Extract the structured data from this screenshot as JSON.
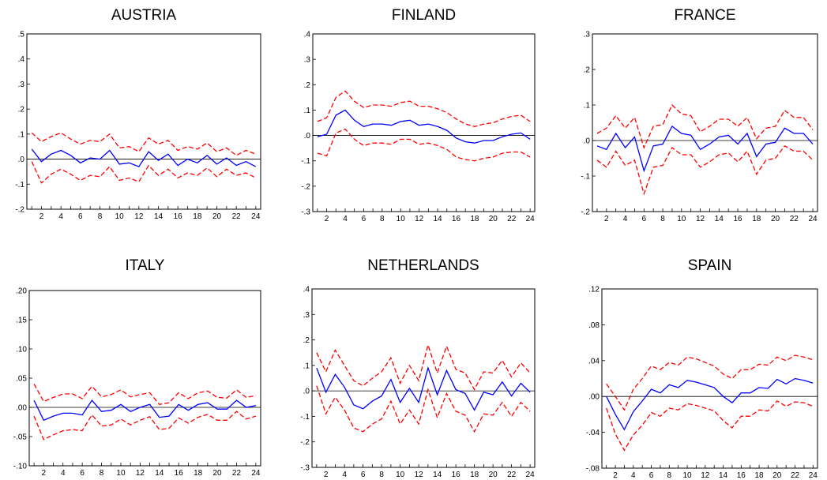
{
  "colors": {
    "response": "#0000ff",
    "band": "#ff0000",
    "zero_line": "#000000",
    "frame": "#000000"
  },
  "chart_data": [
    {
      "type": "line",
      "title": "AUSTRIA",
      "x": [
        1,
        2,
        3,
        4,
        5,
        6,
        7,
        8,
        9,
        10,
        11,
        12,
        13,
        14,
        15,
        16,
        17,
        18,
        19,
        20,
        21,
        22,
        23,
        24
      ],
      "xticks": [
        2,
        4,
        6,
        8,
        10,
        12,
        14,
        16,
        18,
        20,
        22,
        24
      ],
      "ylim": [
        -0.2,
        0.5
      ],
      "yticks": [
        -0.2,
        -0.1,
        0.0,
        0.1,
        0.2,
        0.3,
        0.4,
        0.5
      ],
      "ytick_labels": [
        "-.2",
        "-.1",
        ".0",
        ".1",
        ".2",
        ".3",
        ".4",
        ".5"
      ],
      "series": [
        {
          "role": "response",
          "values": [
            0.04,
            -0.01,
            0.02,
            0.035,
            0.015,
            -0.015,
            0.005,
            0.0,
            0.035,
            -0.02,
            -0.015,
            -0.03,
            0.03,
            -0.005,
            0.02,
            -0.025,
            0.0,
            -0.015,
            0.015,
            -0.02,
            0.005,
            -0.025,
            -0.01,
            -0.03
          ]
        },
        {
          "role": "upper",
          "values": [
            0.105,
            0.07,
            0.09,
            0.105,
            0.08,
            0.06,
            0.075,
            0.07,
            0.1,
            0.045,
            0.05,
            0.03,
            0.085,
            0.06,
            0.075,
            0.035,
            0.05,
            0.04,
            0.065,
            0.03,
            0.045,
            0.015,
            0.035,
            0.02
          ]
        },
        {
          "role": "lower",
          "values": [
            -0.01,
            -0.095,
            -0.06,
            -0.04,
            -0.06,
            -0.085,
            -0.065,
            -0.07,
            -0.03,
            -0.085,
            -0.075,
            -0.09,
            -0.025,
            -0.065,
            -0.04,
            -0.075,
            -0.055,
            -0.065,
            -0.035,
            -0.07,
            -0.04,
            -0.065,
            -0.055,
            -0.075
          ]
        }
      ]
    },
    {
      "type": "line",
      "title": "FINLAND",
      "x": [
        1,
        2,
        3,
        4,
        5,
        6,
        7,
        8,
        9,
        10,
        11,
        12,
        13,
        14,
        15,
        16,
        17,
        18,
        19,
        20,
        21,
        22,
        23,
        24
      ],
      "xticks": [
        2,
        4,
        6,
        8,
        10,
        12,
        14,
        16,
        18,
        20,
        22,
        24
      ],
      "ylim": [
        -0.3,
        0.4
      ],
      "yticks": [
        -0.3,
        -0.2,
        -0.1,
        0.0,
        0.1,
        0.2,
        0.3,
        0.4
      ],
      "ytick_labels": [
        "-.3",
        "-.2",
        "-.1",
        ".0",
        ".1",
        ".2",
        ".3",
        ".4"
      ],
      "series": [
        {
          "role": "response",
          "values": [
            -0.005,
            0.005,
            0.08,
            0.1,
            0.06,
            0.035,
            0.045,
            0.045,
            0.04,
            0.055,
            0.06,
            0.04,
            0.045,
            0.035,
            0.02,
            -0.01,
            -0.025,
            -0.03,
            -0.02,
            -0.02,
            -0.005,
            0.005,
            0.01,
            -0.015
          ]
        },
        {
          "role": "upper",
          "values": [
            0.055,
            0.07,
            0.15,
            0.175,
            0.135,
            0.11,
            0.12,
            0.12,
            0.115,
            0.13,
            0.135,
            0.115,
            0.115,
            0.105,
            0.09,
            0.065,
            0.045,
            0.035,
            0.045,
            0.05,
            0.065,
            0.075,
            0.08,
            0.055
          ]
        },
        {
          "role": "lower",
          "values": [
            -0.07,
            -0.08,
            0.01,
            0.025,
            -0.015,
            -0.04,
            -0.03,
            -0.03,
            -0.035,
            -0.015,
            -0.015,
            -0.035,
            -0.03,
            -0.04,
            -0.055,
            -0.085,
            -0.095,
            -0.1,
            -0.09,
            -0.085,
            -0.07,
            -0.065,
            -0.065,
            -0.085
          ]
        }
      ]
    },
    {
      "type": "line",
      "title": "FRANCE",
      "x": [
        1,
        2,
        3,
        4,
        5,
        6,
        7,
        8,
        9,
        10,
        11,
        12,
        13,
        14,
        15,
        16,
        17,
        18,
        19,
        20,
        21,
        22,
        23,
        24
      ],
      "xticks": [
        2,
        4,
        6,
        8,
        10,
        12,
        14,
        16,
        18,
        20,
        22,
        24
      ],
      "ylim": [
        -0.2,
        0.3
      ],
      "yticks": [
        -0.2,
        -0.1,
        0.0,
        0.1,
        0.2,
        0.3
      ],
      "ytick_labels": [
        "-.2",
        "-.1",
        ".0",
        ".1",
        ".2",
        ".3"
      ],
      "series": [
        {
          "role": "response",
          "values": [
            -0.015,
            -0.025,
            0.02,
            -0.02,
            0.01,
            -0.085,
            -0.015,
            -0.01,
            0.04,
            0.02,
            0.015,
            -0.025,
            -0.01,
            0.01,
            0.015,
            -0.01,
            0.02,
            -0.045,
            -0.01,
            -0.005,
            0.035,
            0.02,
            0.02,
            -0.01
          ]
        },
        {
          "role": "upper",
          "values": [
            0.02,
            0.035,
            0.07,
            0.035,
            0.065,
            -0.02,
            0.04,
            0.045,
            0.1,
            0.075,
            0.07,
            0.025,
            0.04,
            0.06,
            0.06,
            0.04,
            0.065,
            0.005,
            0.035,
            0.04,
            0.085,
            0.065,
            0.065,
            0.03
          ]
        },
        {
          "role": "lower",
          "values": [
            -0.055,
            -0.075,
            -0.03,
            -0.07,
            -0.055,
            -0.15,
            -0.075,
            -0.07,
            -0.02,
            -0.04,
            -0.04,
            -0.075,
            -0.06,
            -0.04,
            -0.035,
            -0.06,
            -0.03,
            -0.095,
            -0.055,
            -0.05,
            -0.015,
            -0.03,
            -0.03,
            -0.055
          ]
        }
      ]
    },
    {
      "type": "line",
      "title": "ITALY",
      "x": [
        1,
        2,
        3,
        4,
        5,
        6,
        7,
        8,
        9,
        10,
        11,
        12,
        13,
        14,
        15,
        16,
        17,
        18,
        19,
        20,
        21,
        22,
        23,
        24
      ],
      "xticks": [
        2,
        4,
        6,
        8,
        10,
        12,
        14,
        16,
        18,
        20,
        22,
        24
      ],
      "ylim": [
        -0.1,
        0.2
      ],
      "yticks": [
        -0.1,
        -0.05,
        0.0,
        0.05,
        0.1,
        0.15,
        0.2
      ],
      "ytick_labels": [
        "-.10",
        "-.05",
        ".00",
        ".05",
        ".10",
        ".15",
        ".20"
      ],
      "series": [
        {
          "role": "response",
          "values": [
            0.012,
            -0.022,
            -0.015,
            -0.01,
            -0.01,
            -0.013,
            0.012,
            -0.007,
            -0.005,
            0.005,
            -0.007,
            0.0,
            0.005,
            -0.017,
            -0.015,
            0.005,
            -0.005,
            0.005,
            0.008,
            -0.003,
            -0.003,
            0.012,
            0.0,
            0.003
          ]
        },
        {
          "role": "upper",
          "values": [
            0.04,
            0.01,
            0.017,
            0.023,
            0.023,
            0.015,
            0.036,
            0.018,
            0.022,
            0.03,
            0.018,
            0.022,
            0.025,
            0.005,
            0.008,
            0.025,
            0.015,
            0.025,
            0.028,
            0.017,
            0.016,
            0.03,
            0.017,
            0.02
          ]
        },
        {
          "role": "lower",
          "values": [
            -0.015,
            -0.055,
            -0.047,
            -0.04,
            -0.038,
            -0.04,
            -0.013,
            -0.032,
            -0.03,
            -0.02,
            -0.03,
            -0.022,
            -0.016,
            -0.038,
            -0.036,
            -0.018,
            -0.027,
            -0.017,
            -0.012,
            -0.022,
            -0.022,
            -0.007,
            -0.02,
            -0.015
          ]
        }
      ]
    },
    {
      "type": "line",
      "title": "NETHERLANDS",
      "x": [
        1,
        2,
        3,
        4,
        5,
        6,
        7,
        8,
        9,
        10,
        11,
        12,
        13,
        14,
        15,
        16,
        17,
        18,
        19,
        20,
        21,
        22,
        23,
        24
      ],
      "xticks": [
        2,
        4,
        6,
        8,
        10,
        12,
        14,
        16,
        18,
        20,
        22,
        24
      ],
      "ylim": [
        -0.3,
        0.4
      ],
      "yticks": [
        -0.3,
        -0.2,
        -0.1,
        0.0,
        0.1,
        0.2,
        0.3,
        0.4
      ],
      "ytick_labels": [
        "-.3",
        "-.2",
        "-.1",
        ".0",
        ".1",
        ".2",
        ".3",
        ".4"
      ],
      "series": [
        {
          "role": "response",
          "values": [
            0.09,
            -0.005,
            0.065,
            0.015,
            -0.055,
            -0.07,
            -0.04,
            -0.02,
            0.045,
            -0.045,
            0.01,
            -0.045,
            0.09,
            -0.015,
            0.08,
            0.005,
            -0.01,
            -0.075,
            -0.005,
            -0.015,
            0.035,
            -0.02,
            0.03,
            -0.005
          ]
        },
        {
          "role": "upper",
          "values": [
            0.15,
            0.075,
            0.16,
            0.1,
            0.04,
            0.02,
            0.05,
            0.075,
            0.13,
            0.03,
            0.1,
            0.04,
            0.18,
            0.07,
            0.175,
            0.085,
            0.07,
            0.005,
            0.075,
            0.07,
            0.12,
            0.055,
            0.11,
            0.07
          ]
        },
        {
          "role": "lower",
          "values": [
            0.02,
            -0.09,
            -0.025,
            -0.075,
            -0.145,
            -0.16,
            -0.13,
            -0.11,
            -0.04,
            -0.13,
            -0.075,
            -0.13,
            0.005,
            -0.105,
            -0.01,
            -0.08,
            -0.095,
            -0.16,
            -0.09,
            -0.095,
            -0.045,
            -0.1,
            -0.045,
            -0.08
          ]
        }
      ]
    },
    {
      "type": "line",
      "title": "SPAIN",
      "x": [
        1,
        2,
        3,
        4,
        5,
        6,
        7,
        8,
        9,
        10,
        11,
        12,
        13,
        14,
        15,
        16,
        17,
        18,
        19,
        20,
        21,
        22,
        23,
        24
      ],
      "xticks": [
        2,
        4,
        6,
        8,
        10,
        12,
        14,
        16,
        18,
        20,
        22,
        24
      ],
      "ylim": [
        -0.08,
        0.12
      ],
      "yticks": [
        -0.08,
        -0.04,
        0.0,
        0.04,
        0.08,
        0.12
      ],
      "ytick_labels": [
        "-.08",
        "-.04",
        ".00",
        ".04",
        ".08",
        ".12"
      ],
      "series": [
        {
          "role": "response",
          "values": [
            0.0,
            -0.02,
            -0.037,
            -0.017,
            -0.005,
            0.008,
            0.004,
            0.013,
            0.01,
            0.018,
            0.016,
            0.013,
            0.01,
            0.0,
            -0.007,
            0.004,
            0.004,
            0.01,
            0.009,
            0.019,
            0.014,
            0.02,
            0.018,
            0.015
          ]
        },
        {
          "role": "upper",
          "values": [
            0.014,
            0.0,
            -0.015,
            0.008,
            0.02,
            0.034,
            0.03,
            0.038,
            0.035,
            0.044,
            0.042,
            0.038,
            0.034,
            0.025,
            0.02,
            0.03,
            0.03,
            0.036,
            0.035,
            0.044,
            0.04,
            0.046,
            0.044,
            0.041
          ]
        },
        {
          "role": "lower",
          "values": [
            -0.013,
            -0.042,
            -0.06,
            -0.043,
            -0.032,
            -0.018,
            -0.022,
            -0.013,
            -0.015,
            -0.008,
            -0.01,
            -0.013,
            -0.016,
            -0.027,
            -0.035,
            -0.022,
            -0.022,
            -0.015,
            -0.016,
            -0.005,
            -0.011,
            -0.006,
            -0.007,
            -0.011
          ]
        }
      ]
    }
  ]
}
